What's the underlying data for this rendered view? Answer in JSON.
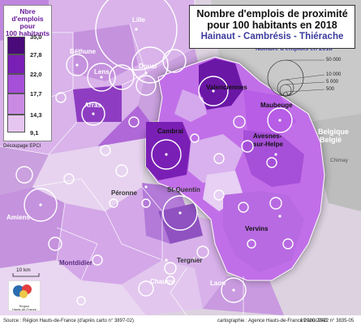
{
  "title": {
    "line1": "Nombre d'emplois de proximité",
    "line2": "pour 100 habitants en 2018",
    "line3": "Hainaut - Cambrésis - Thiérache"
  },
  "legend": {
    "title_lines": [
      "Nbre d'emplois",
      "pour",
      "100 habitants"
    ],
    "classes": [
      {
        "label": "35,0",
        "color": "#4a0a7a"
      },
      {
        "label": "27,8",
        "color": "#7a1fb5"
      },
      {
        "label": "22,0",
        "color": "#a64fd8"
      },
      {
        "label": "17,7",
        "color": "#c98ae4"
      },
      {
        "label": "14,3",
        "color": "#e6c6f1"
      },
      {
        "label": "9,1",
        "color": ""
      }
    ],
    "decoupage": "Découpage EPCI"
  },
  "circle_legend": {
    "title": "Nombre d'emplois en 2018",
    "values": [
      "50 000",
      "10 000",
      "5 000",
      "500"
    ]
  },
  "places": {
    "lille": "Lille",
    "bethune": "Béthune",
    "lens": "Lens",
    "douai": "Douai",
    "arras": "Arras",
    "valenciennes": "Valenciennes",
    "maubeuge": "Maubeuge",
    "cambrai": "Cambrai",
    "avesnes": "Avesnes-\nsur-Helpe",
    "avesnes_1": "Avesnes-",
    "avesnes_2": "sur-Helpe",
    "peronne": "Péronne",
    "saint_quentin": "St-Quentin",
    "amiens": "Amiens",
    "vervins": "Vervins",
    "montdidier": "Montdidier",
    "tergnier": "Tergnier",
    "chauny": "Chauny",
    "laon": "Laon",
    "belgique": "Belgique\nBelgïe",
    "belgique_1": "Belgique",
    "belgique_2": "België",
    "chimay": "Chimay"
  },
  "scale": "10 km",
  "logo": {
    "line1": "Région",
    "line2": "Hauts-de-France"
  },
  "footer": {
    "source": "Source : Région Hauts-de-France (d'après carto n° 3897-02)",
    "credit": "cartographie : Agence Hauts-de-France 2020-2040",
    "date": "19 août 2022 n° 3835-05"
  }
}
